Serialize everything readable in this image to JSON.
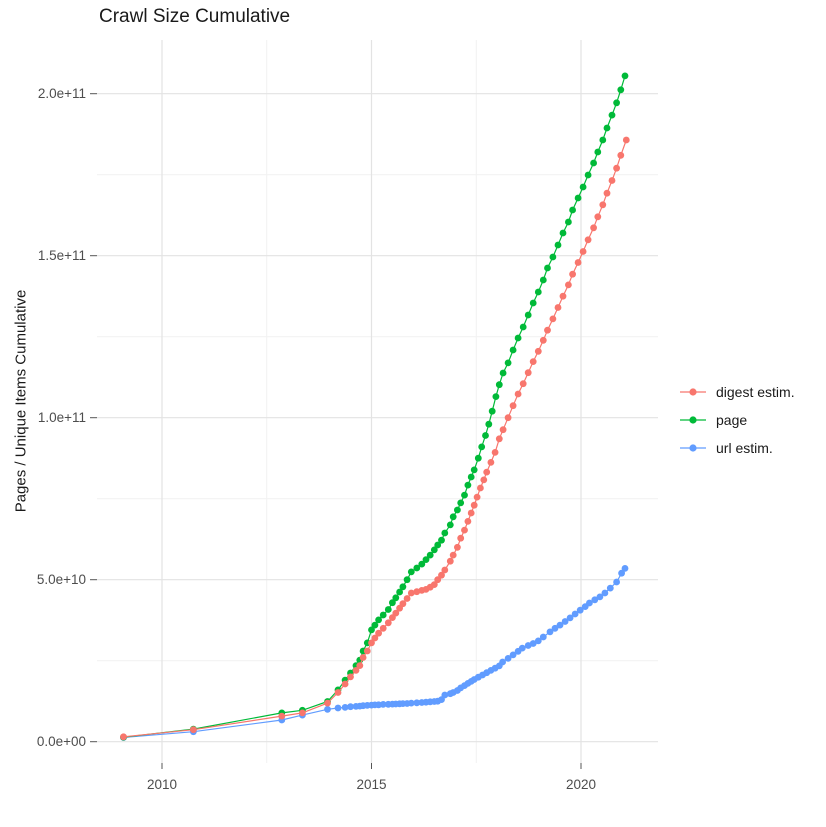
{
  "title": "Crawl Size Cumulative",
  "axes": {
    "y_title": "Pages / Unique Items Cumulative",
    "x_ticks": [
      {
        "label": "2010",
        "year": 2010
      },
      {
        "label": "2015",
        "year": 2015
      },
      {
        "label": "2020",
        "year": 2020
      }
    ],
    "y_ticks": [
      {
        "label": "0.0e+00",
        "value_billions": 0
      },
      {
        "label": "5.0e+10",
        "value_billions": 50
      },
      {
        "label": "1.0e+11",
        "value_billions": 100
      },
      {
        "label": "1.5e+11",
        "value_billions": 150
      },
      {
        "label": "2.0e+11",
        "value_billions": 200
      }
    ],
    "x_minor_years": [
      2012.5,
      2017.5
    ],
    "y_minor_billions": [
      25,
      75,
      125,
      175
    ]
  },
  "colors": {
    "grid_major": "#e3e3e3",
    "grid_minor": "#f1f1f1",
    "tick": "#555555",
    "tick_label": "#4d4d4d",
    "title": "#1a1a1a",
    "background": "#ffffff"
  },
  "legend": [
    {
      "label": "digest estim.",
      "color": "#F8766D"
    },
    {
      "label": "page",
      "color": "#00BA38"
    },
    {
      "label": "url estim.",
      "color": "#619CFF"
    }
  ],
  "chart_data": {
    "type": "line",
    "title": "Crawl Size Cumulative",
    "xlabel": "",
    "ylabel": "Pages / Unique Items Cumulative",
    "x_unit": "year",
    "y_unit": "pages / unique items, values listed in billions (1e9)",
    "xlim": [
      2008.45,
      2021.85
    ],
    "ylim_billions": [
      0,
      216
    ],
    "grid": true,
    "legend_position": "right",
    "marker": "point-with-line",
    "series": [
      {
        "name": "digest estim.",
        "color": "#F8766D",
        "points": [
          [
            2009.08,
            1.5
          ],
          [
            2010.75,
            3.7
          ],
          [
            2012.86,
            7.9
          ],
          [
            2013.35,
            8.9
          ],
          [
            2013.95,
            11.9
          ],
          [
            2014.2,
            15.2
          ],
          [
            2014.37,
            17.8
          ],
          [
            2014.5,
            20.0
          ],
          [
            2014.63,
            22.0
          ],
          [
            2014.72,
            23.5
          ],
          [
            2014.8,
            26.0
          ],
          [
            2014.9,
            28.0
          ],
          [
            2015.0,
            30.5
          ],
          [
            2015.08,
            32.0
          ],
          [
            2015.17,
            33.5
          ],
          [
            2015.28,
            35.0
          ],
          [
            2015.4,
            36.7
          ],
          [
            2015.5,
            38.3
          ],
          [
            2015.58,
            39.7
          ],
          [
            2015.67,
            41.2
          ],
          [
            2015.75,
            42.6
          ],
          [
            2015.85,
            44.2
          ],
          [
            2015.95,
            45.9
          ],
          [
            2016.08,
            46.3
          ],
          [
            2016.2,
            46.7
          ],
          [
            2016.3,
            47.0
          ],
          [
            2016.4,
            47.7
          ],
          [
            2016.5,
            48.5
          ],
          [
            2016.58,
            50.0
          ],
          [
            2016.67,
            51.4
          ],
          [
            2016.75,
            53.0
          ],
          [
            2016.88,
            55.7
          ],
          [
            2016.95,
            57.6
          ],
          [
            2017.05,
            60.0
          ],
          [
            2017.13,
            62.8
          ],
          [
            2017.22,
            65.3
          ],
          [
            2017.3,
            68.0
          ],
          [
            2017.38,
            70.6
          ],
          [
            2017.45,
            73.0
          ],
          [
            2017.52,
            75.5
          ],
          [
            2017.6,
            78.3
          ],
          [
            2017.68,
            80.8
          ],
          [
            2017.75,
            83.2
          ],
          [
            2017.85,
            86.2
          ],
          [
            2017.95,
            89.3
          ],
          [
            2018.05,
            93.5
          ],
          [
            2018.14,
            96.3
          ],
          [
            2018.26,
            100.0
          ],
          [
            2018.38,
            103.7
          ],
          [
            2018.5,
            107.3
          ],
          [
            2018.62,
            110.5
          ],
          [
            2018.74,
            113.9
          ],
          [
            2018.86,
            117.3
          ],
          [
            2018.98,
            120.5
          ],
          [
            2019.1,
            123.9
          ],
          [
            2019.2,
            127.0
          ],
          [
            2019.33,
            130.5
          ],
          [
            2019.45,
            134.0
          ],
          [
            2019.57,
            137.5
          ],
          [
            2019.7,
            141.0
          ],
          [
            2019.8,
            144.3
          ],
          [
            2019.93,
            147.9
          ],
          [
            2020.05,
            151.3
          ],
          [
            2020.17,
            154.9
          ],
          [
            2020.3,
            158.6
          ],
          [
            2020.4,
            162.0
          ],
          [
            2020.52,
            165.7
          ],
          [
            2020.62,
            169.3
          ],
          [
            2020.74,
            173.2
          ],
          [
            2020.85,
            177.0
          ],
          [
            2020.95,
            181.0
          ],
          [
            2021.08,
            185.7
          ]
        ]
      },
      {
        "name": "page",
        "color": "#00BA38",
        "points": [
          [
            2009.08,
            1.4
          ],
          [
            2010.75,
            3.9
          ],
          [
            2012.86,
            8.9
          ],
          [
            2013.35,
            9.7
          ],
          [
            2013.95,
            12.4
          ],
          [
            2014.2,
            16.0
          ],
          [
            2014.37,
            19.0
          ],
          [
            2014.5,
            21.2
          ],
          [
            2014.63,
            23.5
          ],
          [
            2014.72,
            25.2
          ],
          [
            2014.8,
            28.0
          ],
          [
            2014.9,
            30.5
          ],
          [
            2015.0,
            34.5
          ],
          [
            2015.08,
            36.0
          ],
          [
            2015.17,
            37.6
          ],
          [
            2015.28,
            39.1
          ],
          [
            2015.4,
            40.8
          ],
          [
            2015.5,
            42.9
          ],
          [
            2015.58,
            44.4
          ],
          [
            2015.67,
            46.2
          ],
          [
            2015.75,
            47.8
          ],
          [
            2015.85,
            50.0
          ],
          [
            2015.95,
            52.4
          ],
          [
            2016.08,
            53.6
          ],
          [
            2016.2,
            54.8
          ],
          [
            2016.3,
            56.2
          ],
          [
            2016.4,
            57.6
          ],
          [
            2016.5,
            59.2
          ],
          [
            2016.58,
            60.7
          ],
          [
            2016.67,
            62.2
          ],
          [
            2016.75,
            64.4
          ],
          [
            2016.88,
            66.9
          ],
          [
            2016.95,
            69.4
          ],
          [
            2017.05,
            71.5
          ],
          [
            2017.13,
            73.7
          ],
          [
            2017.22,
            76.1
          ],
          [
            2017.3,
            79.2
          ],
          [
            2017.38,
            81.7
          ],
          [
            2017.45,
            83.9
          ],
          [
            2017.55,
            87.5
          ],
          [
            2017.63,
            91.0
          ],
          [
            2017.72,
            94.5
          ],
          [
            2017.8,
            98.0
          ],
          [
            2017.88,
            102.0
          ],
          [
            2017.97,
            106.5
          ],
          [
            2018.05,
            110.2
          ],
          [
            2018.14,
            113.8
          ],
          [
            2018.26,
            116.9
          ],
          [
            2018.38,
            120.9
          ],
          [
            2018.5,
            124.6
          ],
          [
            2018.62,
            128.0
          ],
          [
            2018.74,
            131.7
          ],
          [
            2018.86,
            135.4
          ],
          [
            2018.98,
            138.8
          ],
          [
            2019.1,
            142.5
          ],
          [
            2019.2,
            146.2
          ],
          [
            2019.33,
            149.6
          ],
          [
            2019.45,
            153.3
          ],
          [
            2019.57,
            157.0
          ],
          [
            2019.7,
            160.4
          ],
          [
            2019.8,
            164.1
          ],
          [
            2019.93,
            167.8
          ],
          [
            2020.05,
            171.2
          ],
          [
            2020.17,
            174.9
          ],
          [
            2020.3,
            178.6
          ],
          [
            2020.4,
            182.0
          ],
          [
            2020.52,
            185.7
          ],
          [
            2020.62,
            189.4
          ],
          [
            2020.74,
            193.4
          ],
          [
            2020.85,
            197.2
          ],
          [
            2020.95,
            201.2
          ],
          [
            2021.05,
            205.5
          ]
        ]
      },
      {
        "name": "url estim.",
        "color": "#619CFF",
        "points": [
          [
            2009.08,
            1.3
          ],
          [
            2010.75,
            3.1
          ],
          [
            2012.86,
            6.7
          ],
          [
            2013.35,
            8.2
          ],
          [
            2013.95,
            10.0
          ],
          [
            2014.2,
            10.4
          ],
          [
            2014.37,
            10.6
          ],
          [
            2014.5,
            10.8
          ],
          [
            2014.63,
            10.9
          ],
          [
            2014.72,
            11.0
          ],
          [
            2014.8,
            11.1
          ],
          [
            2014.9,
            11.2
          ],
          [
            2015.0,
            11.3
          ],
          [
            2015.08,
            11.35
          ],
          [
            2015.17,
            11.4
          ],
          [
            2015.28,
            11.5
          ],
          [
            2015.4,
            11.55
          ],
          [
            2015.5,
            11.6
          ],
          [
            2015.58,
            11.65
          ],
          [
            2015.67,
            11.7
          ],
          [
            2015.75,
            11.75
          ],
          [
            2015.85,
            11.8
          ],
          [
            2015.95,
            11.9
          ],
          [
            2016.08,
            12.0
          ],
          [
            2016.2,
            12.1
          ],
          [
            2016.3,
            12.2
          ],
          [
            2016.4,
            12.3
          ],
          [
            2016.5,
            12.4
          ],
          [
            2016.58,
            12.5
          ],
          [
            2016.67,
            13.0
          ],
          [
            2016.75,
            14.4
          ],
          [
            2016.88,
            14.8
          ],
          [
            2016.95,
            15.2
          ],
          [
            2017.05,
            15.8
          ],
          [
            2017.13,
            16.6
          ],
          [
            2017.22,
            17.3
          ],
          [
            2017.3,
            18.0
          ],
          [
            2017.38,
            18.6
          ],
          [
            2017.45,
            19.2
          ],
          [
            2017.55,
            19.9
          ],
          [
            2017.65,
            20.6
          ],
          [
            2017.75,
            21.3
          ],
          [
            2017.85,
            22.0
          ],
          [
            2017.95,
            22.7
          ],
          [
            2018.05,
            23.4
          ],
          [
            2018.13,
            24.6
          ],
          [
            2018.26,
            25.7
          ],
          [
            2018.38,
            26.8
          ],
          [
            2018.5,
            27.9
          ],
          [
            2018.6,
            28.9
          ],
          [
            2018.74,
            29.7
          ],
          [
            2018.86,
            30.3
          ],
          [
            2018.98,
            31.1
          ],
          [
            2019.1,
            32.3
          ],
          [
            2019.26,
            33.9
          ],
          [
            2019.38,
            35.0
          ],
          [
            2019.5,
            36.0
          ],
          [
            2019.62,
            37.1
          ],
          [
            2019.74,
            38.2
          ],
          [
            2019.86,
            39.4
          ],
          [
            2019.98,
            40.6
          ],
          [
            2020.1,
            41.7
          ],
          [
            2020.2,
            42.8
          ],
          [
            2020.33,
            43.8
          ],
          [
            2020.45,
            44.7
          ],
          [
            2020.57,
            45.9
          ],
          [
            2020.7,
            47.4
          ],
          [
            2020.85,
            49.3
          ],
          [
            2020.97,
            52.0
          ],
          [
            2021.05,
            53.5
          ]
        ]
      }
    ]
  }
}
